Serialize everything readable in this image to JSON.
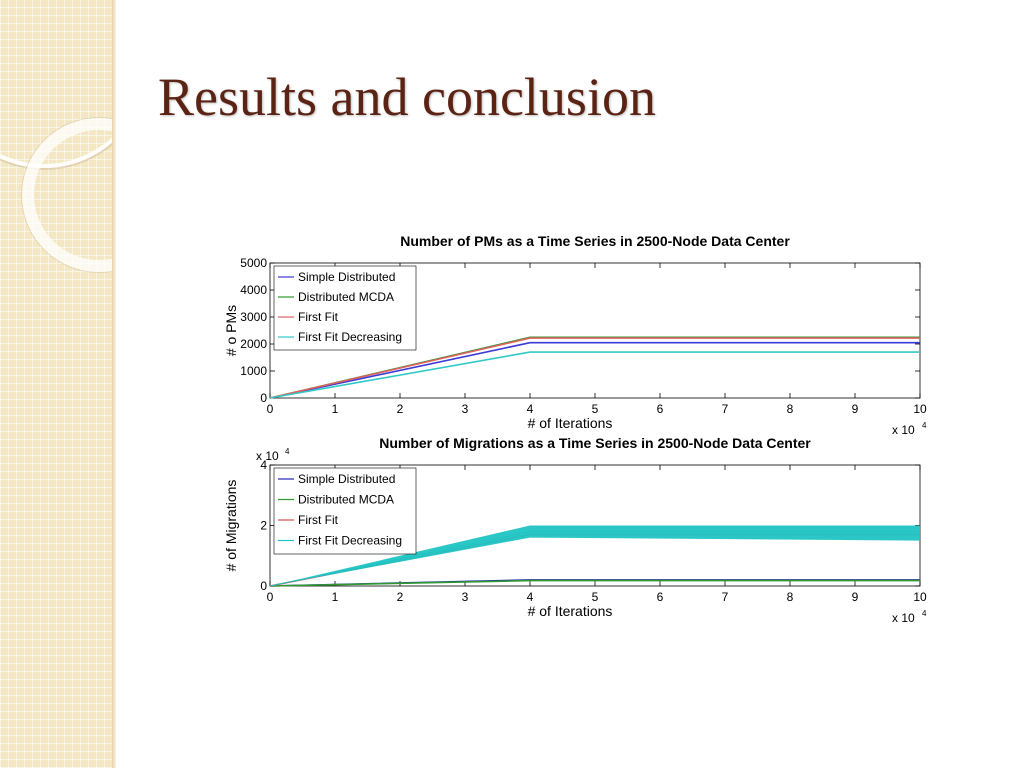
{
  "slide": {
    "title": "Results and conclusion"
  },
  "chart_data": [
    {
      "type": "line",
      "title": "Number of PMs as a Time Series in 2500-Node Data Center",
      "xlabel": "# of Iterations",
      "ylabel": "# o PMs",
      "x_multiplier": "x 10",
      "x_multiplier_exp": "4",
      "xlim": [
        0,
        10
      ],
      "ylim": [
        0,
        5000
      ],
      "xticks": [
        "0",
        "1",
        "2",
        "3",
        "4",
        "5",
        "6",
        "7",
        "8",
        "9",
        "10"
      ],
      "yticks": [
        "0",
        "1000",
        "2000",
        "3000",
        "4000",
        "5000"
      ],
      "legend_position": "top-left",
      "series": [
        {
          "name": "Simple Distributed",
          "color": "#3a3ad6",
          "x": [
            0,
            4,
            10
          ],
          "y": [
            0,
            2050,
            2050
          ]
        },
        {
          "name": "Distributed MCDA",
          "color": "#2e9a2e",
          "x": [
            0,
            4,
            10
          ],
          "y": [
            0,
            2250,
            2250
          ]
        },
        {
          "name": "First Fit",
          "color": "#e06060",
          "x": [
            0,
            4,
            10
          ],
          "y": [
            0,
            2220,
            2220
          ]
        },
        {
          "name": "First Fit Decreasing",
          "color": "#30c8c8",
          "x": [
            0,
            4,
            10
          ],
          "y": [
            0,
            1700,
            1700
          ]
        }
      ]
    },
    {
      "type": "line",
      "title": "Number of Migrations as a Time Series in 2500-Node Data Center",
      "xlabel": "# of Iterations",
      "ylabel": "# of Migrations",
      "x_multiplier": "x 10",
      "x_multiplier_exp": "4",
      "y_multiplier": "x 10",
      "y_multiplier_exp": "4",
      "xlim": [
        0,
        10
      ],
      "ylim": [
        0,
        4
      ],
      "xticks": [
        "0",
        "1",
        "2",
        "3",
        "4",
        "5",
        "6",
        "7",
        "8",
        "9",
        "10"
      ],
      "yticks": [
        "0",
        "2",
        "4"
      ],
      "legend_position": "top-left",
      "series": [
        {
          "name": "Simple Distributed",
          "color": "#2424b8",
          "x": [
            0,
            4,
            10
          ],
          "y": [
            0,
            0.2,
            0.2
          ]
        },
        {
          "name": "Distributed MCDA",
          "color": "#2e9a2e",
          "x": [
            0,
            4,
            10
          ],
          "y": [
            0,
            0.18,
            0.18
          ]
        },
        {
          "name": "First Fit",
          "color": "#d05050",
          "x": [
            0,
            4,
            10
          ],
          "y": [
            0,
            1.7,
            1.7
          ]
        },
        {
          "name": "First Fit Decreasing",
          "color": "#20c4c4",
          "x": [
            0,
            4,
            10
          ],
          "y": [
            0,
            1.8,
            1.8
          ],
          "band_low": [
            0,
            1.6,
            1.5
          ],
          "band_high": [
            0,
            2.0,
            2.0
          ]
        }
      ]
    }
  ]
}
